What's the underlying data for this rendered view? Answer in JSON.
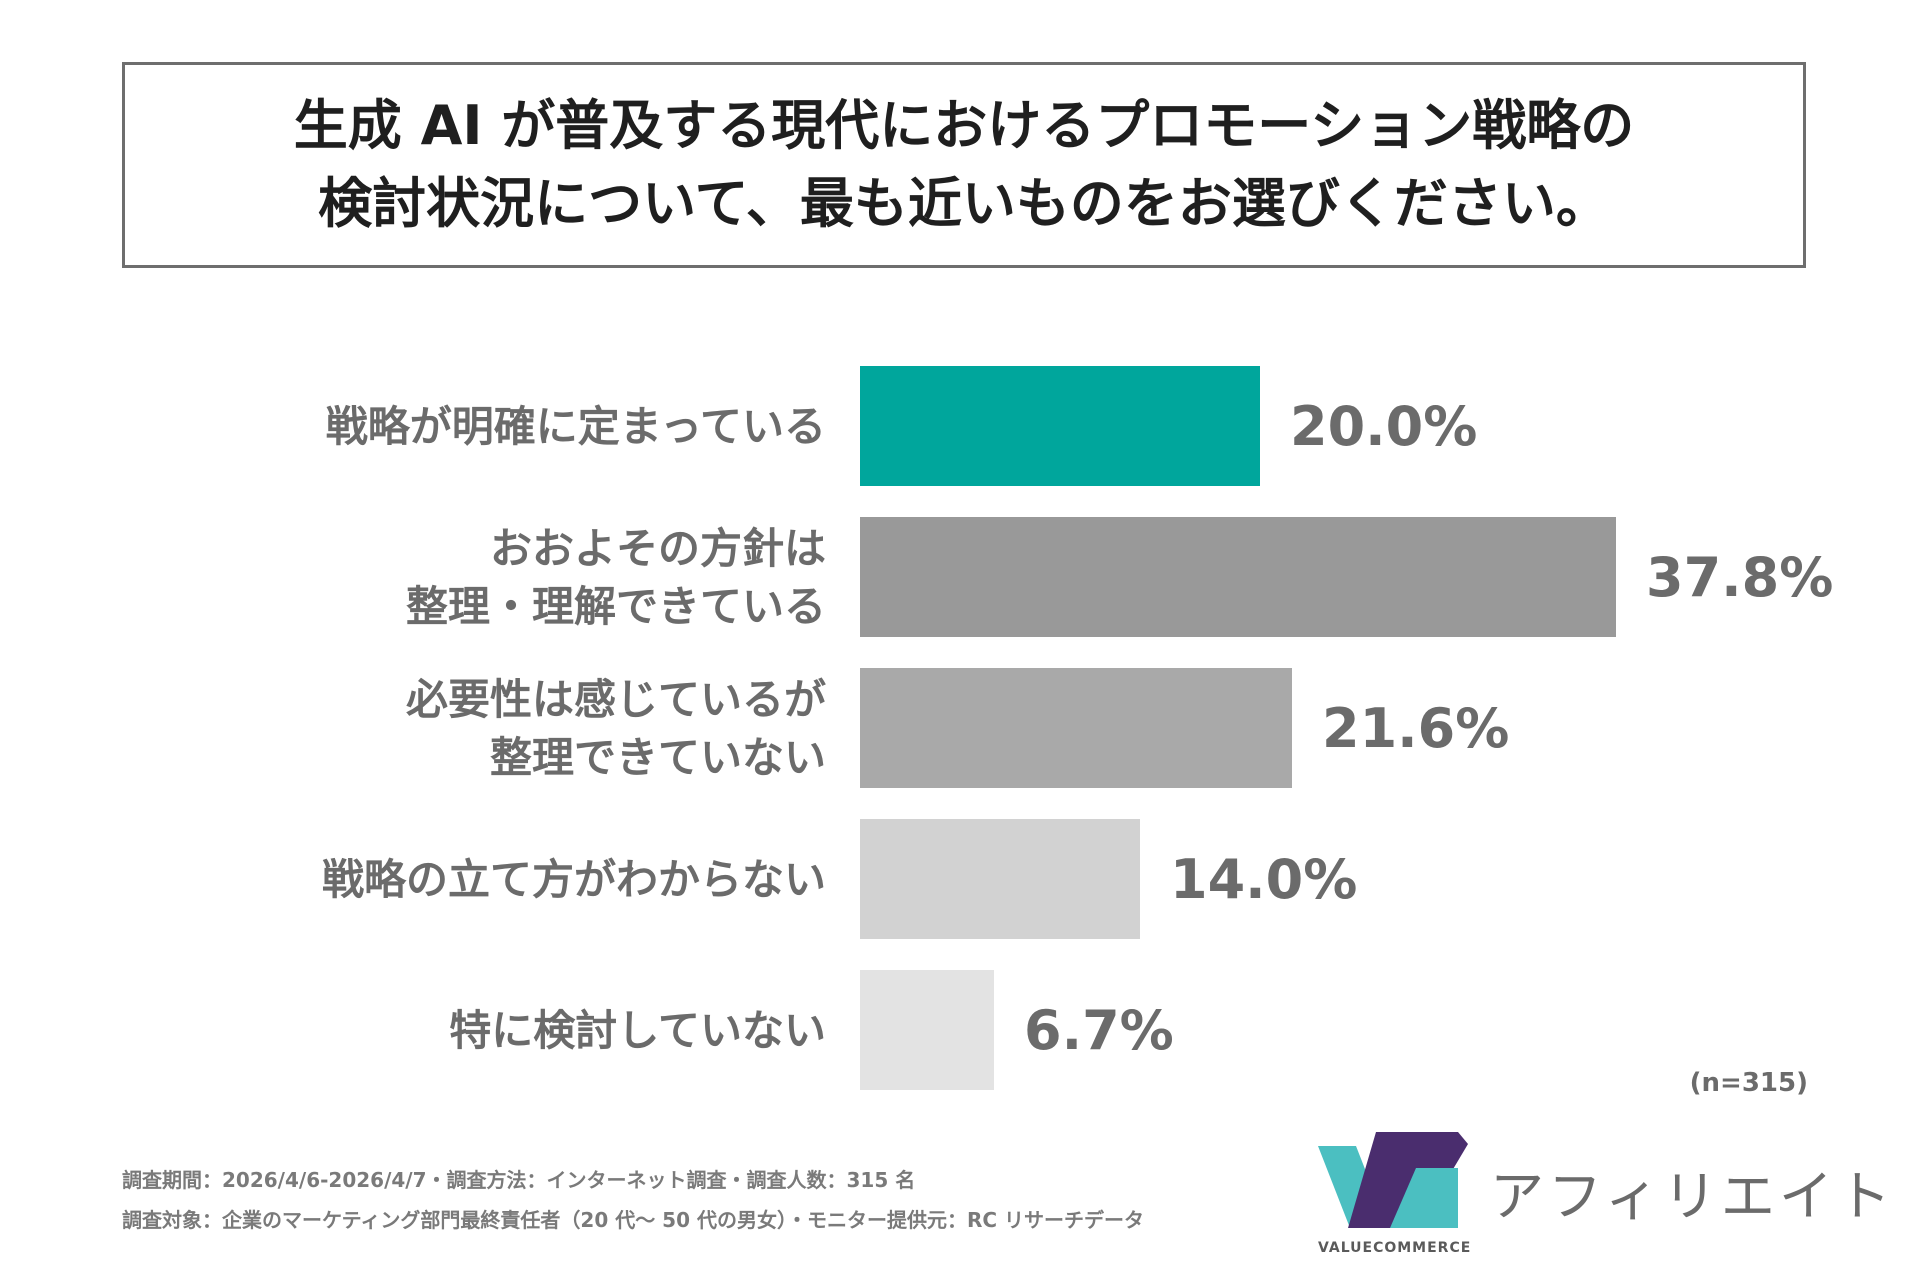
{
  "title": {
    "line1": "生成 AI が普及する現代におけるプロモーション戦略の",
    "line2": "検討状況について、最も近いものをお選びください。"
  },
  "chart_data": {
    "type": "bar",
    "orientation": "horizontal",
    "categories": [
      [
        "戦略が明確に定まっている"
      ],
      [
        "おおよその方針は",
        "整理・理解できている"
      ],
      [
        "必要性は感じているが",
        "整理できていない"
      ],
      [
        "戦略の立て方がわからない"
      ],
      [
        "特に検討していない"
      ]
    ],
    "values": [
      20.0,
      37.8,
      21.6,
      14.0,
      6.7
    ],
    "value_labels": [
      "20.0%",
      "37.8%",
      "21.6%",
      "14.0%",
      "6.7%"
    ],
    "colors": [
      "#00a69c",
      "#999999",
      "#a9a9a9",
      "#d2d2d2",
      "#e3e3e3"
    ],
    "xlim": [
      0,
      40
    ],
    "grid": false,
    "legend": "none"
  },
  "sample_size": "(n=315)",
  "footnotes": {
    "line1": "調査期間：2026/4/6-2026/4/7・調査方法：インターネット調査・調査人数：315 名",
    "line2": "調査対象：企業のマーケティング部門最終責任者（20 代～ 50 代の男女）・モニター提供元：RC リサーチデータ"
  },
  "logo": {
    "text": "アフィリエイト",
    "brand": "VALUECOMMERCE",
    "colors": {
      "teal": "#4bbfc1",
      "purple": "#4a2d6e"
    }
  }
}
